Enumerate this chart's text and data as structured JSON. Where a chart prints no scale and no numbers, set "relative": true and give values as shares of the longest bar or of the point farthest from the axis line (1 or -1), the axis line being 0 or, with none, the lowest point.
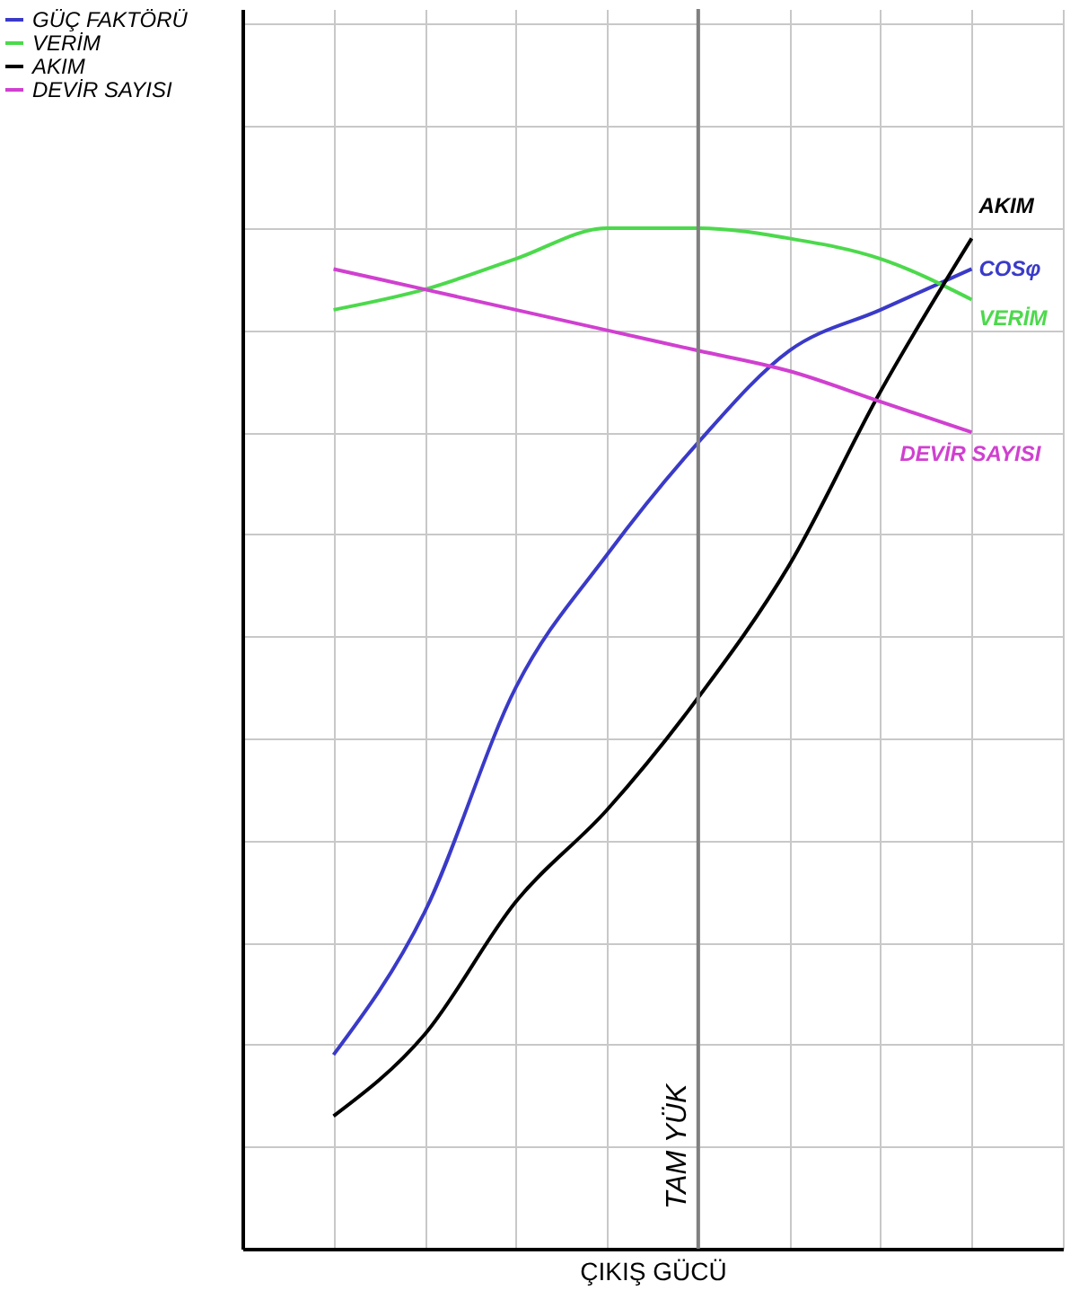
{
  "chart_data": {
    "type": "line",
    "relative": true,
    "xlabel": "ÇIKIŞ GÜCÜ",
    "categories": [
      null,
      null,
      null,
      null,
      null,
      null,
      null,
      null,
      null,
      null
    ],
    "series": [
      {
        "name": "GÜÇ FAKTÖRÜ",
        "color": "#3a3ac8",
        "values": [
          null,
          0.19,
          0.33,
          0.55,
          0.68,
          0.79,
          0.88,
          0.92,
          0.96,
          null
        ]
      },
      {
        "name": "VERİM",
        "color": "#4cd94c",
        "values": [
          null,
          0.92,
          0.94,
          0.97,
          1.0,
          1.0,
          0.99,
          0.97,
          0.93,
          null
        ]
      },
      {
        "name": "AKIM",
        "color": "#000000",
        "values": [
          null,
          0.13,
          0.21,
          0.34,
          0.43,
          0.54,
          0.67,
          0.84,
          0.99,
          null
        ]
      },
      {
        "name": "DEVİR SAYISI",
        "color": "#d040d0",
        "values": [
          null,
          0.96,
          0.94,
          0.92,
          0.9,
          0.88,
          0.86,
          0.83,
          0.8,
          null
        ]
      }
    ],
    "annotations": [
      "COSφ",
      "VERİM",
      "AKIM",
      "DEVİR SAYISI",
      "TAM YÜK"
    ],
    "grid": true,
    "legend": "top left",
    "tick_labels": false,
    "line_style": "solid",
    "marker": "none"
  }
}
